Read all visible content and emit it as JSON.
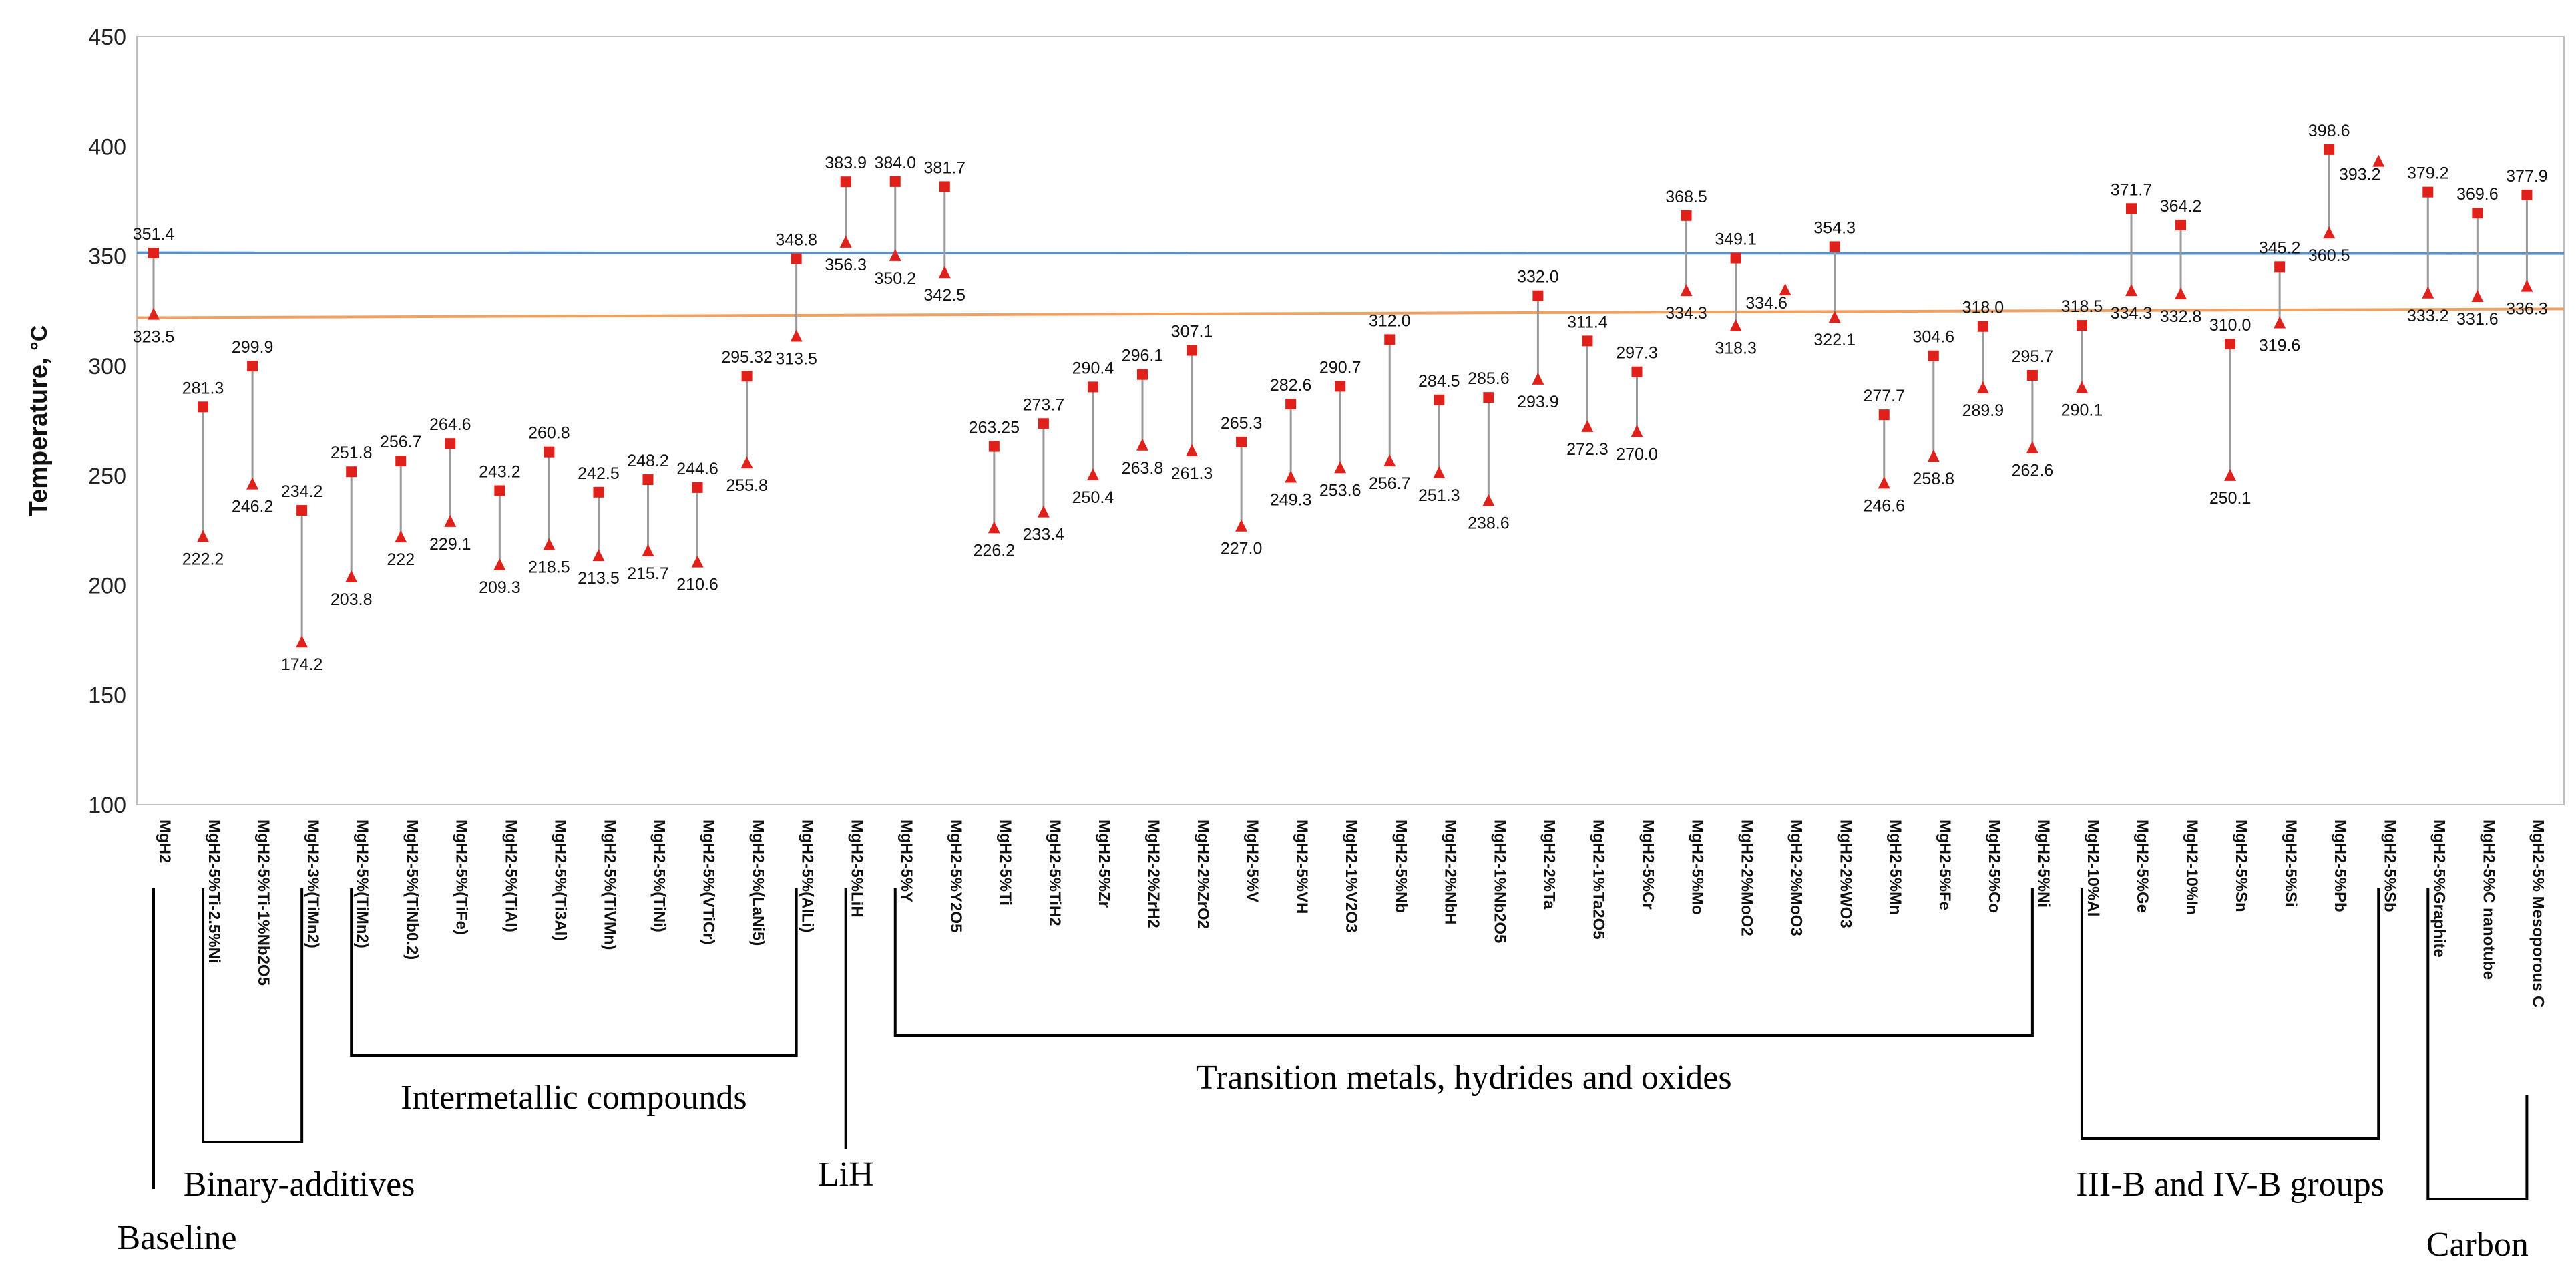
{
  "chart_data": {
    "type": "scatter",
    "ylabel": "Temperature, ",
    "yunit": "°C",
    "ylim": [
      100,
      450
    ],
    "yticks": [
      100,
      150,
      200,
      250,
      300,
      350,
      400,
      450
    ],
    "grid": false,
    "reference_lines": [
      {
        "name": "blue",
        "color": "#5b8fc7",
        "from": 351.5,
        "to": 351.2
      },
      {
        "name": "orange",
        "color": "#f0a060",
        "from": 322,
        "to": 326
      }
    ],
    "marker_color": "#e0201a",
    "stem_color": "#9a9a9a",
    "points": [
      {
        "label": "MgH2",
        "square": "351.4",
        "triangle": "323.5"
      },
      {
        "label": "MgH2-5%Ti-2.5%Ni",
        "square": "281.3",
        "triangle": "222.2"
      },
      {
        "label": "MgH2-5%Ti-1%Nb2O5",
        "square": "299.9",
        "triangle": "246.2"
      },
      {
        "label": "MgH2-3%(TiMn2)",
        "square": "234.2",
        "triangle": "174.2"
      },
      {
        "label": "MgH2-5%(TiMn2)",
        "square": "251.8",
        "triangle": "203.8"
      },
      {
        "label": "MgH2-5%(TiNb0.2)",
        "square": "256.7",
        "triangle": "222"
      },
      {
        "label": "MgH2-5%(TiFe)",
        "square": "264.6",
        "triangle": "229.1"
      },
      {
        "label": "MgH2-5%(TiAl)",
        "square": "243.2",
        "triangle": "209.3"
      },
      {
        "label": "MgH2-5%(Ti3Al)",
        "square": "260.8",
        "triangle": "218.5"
      },
      {
        "label": "MgH2-5%(TiVMn)",
        "square": "242.5",
        "triangle": "213.5"
      },
      {
        "label": "MgH2-5%(TiNi)",
        "square": "248.2",
        "triangle": "215.7"
      },
      {
        "label": "MgH2-5%(VTiCr)",
        "square": "244.6",
        "triangle": "210.6"
      },
      {
        "label": "MgH2-5%(LaNi5)",
        "square": "295.32",
        "triangle": "255.8"
      },
      {
        "label": "MgH2-5%(AlLi)",
        "square": "348.8",
        "triangle": "313.5"
      },
      {
        "label": "MgH2-5%LiH",
        "square": "383.9",
        "triangle": "356.3"
      },
      {
        "label": "MgH2-5%Y",
        "square": "384.0",
        "triangle": "350.2"
      },
      {
        "label": "MgH2-5%Y2O5",
        "square": "381.7",
        "triangle": "342.5"
      },
      {
        "label": "MgH2-5%Ti",
        "square": "263.25",
        "triangle": "226.2"
      },
      {
        "label": "MgH2-5%TiH2",
        "square": "273.7",
        "triangle": "233.4"
      },
      {
        "label": "MgH2-5%Zr",
        "square": "290.4",
        "triangle": "250.4"
      },
      {
        "label": "MgH2-2%ZrH2",
        "square": "296.1",
        "triangle": "263.8"
      },
      {
        "label": "MgH2-2%ZrO2",
        "square": "307.1",
        "triangle": "261.3"
      },
      {
        "label": "MgH2-5%V",
        "square": "265.3",
        "triangle": "227.0"
      },
      {
        "label": "MgH2-5%VH",
        "square": "282.6",
        "triangle": "249.3"
      },
      {
        "label": "MgH2-1%V2O3",
        "square": "290.7",
        "triangle": "253.6"
      },
      {
        "label": "MgH2-5%Nb",
        "square": "312.0",
        "triangle": "256.7"
      },
      {
        "label": "MgH2-2%NbH",
        "square": "284.5",
        "triangle": "251.3"
      },
      {
        "label": "MgH2-1%Nb2O5",
        "square": "285.6",
        "triangle": "238.6"
      },
      {
        "label": "MgH2-2%Ta",
        "square": "332.0",
        "triangle": "293.9"
      },
      {
        "label": "MgH2-1%Ta2O5",
        "square": "311.4",
        "triangle": "272.3"
      },
      {
        "label": "MgH2-5%Cr",
        "square": "297.3",
        "triangle": "270.0"
      },
      {
        "label": "MgH2-5%Mo",
        "square": "368.5",
        "triangle": "334.3"
      },
      {
        "label": "MgH2-2%MoO2",
        "square": "349.1",
        "triangle": "318.3"
      },
      {
        "label": "MgH2-2%MoO3",
        "square": null,
        "triangle": "334.6"
      },
      {
        "label": "MgH2-2%WO3",
        "square": "354.3",
        "triangle": "322.1"
      },
      {
        "label": "MgH2-5%Mn",
        "square": "277.7",
        "triangle": "246.6"
      },
      {
        "label": "MgH2-5%Fe",
        "square": "304.6",
        "triangle": "258.8"
      },
      {
        "label": "MgH2-5%Co",
        "square": "318.0",
        "triangle": "289.9"
      },
      {
        "label": "MgH2-5%Ni",
        "square": "295.7",
        "triangle": "262.6"
      },
      {
        "label": "MgH2-10%Al",
        "square": "318.5",
        "triangle": "290.1"
      },
      {
        "label": "MgH2-5%Ge",
        "square": "371.7",
        "triangle": "334.3"
      },
      {
        "label": "MgH2-10%In",
        "square": "364.2",
        "triangle": "332.8"
      },
      {
        "label": "MgH2-5%Sn",
        "square": "310.0",
        "triangle": "250.1"
      },
      {
        "label": "MgH2-5%Si",
        "square": "345.2",
        "triangle": "319.6"
      },
      {
        "label": "MgH2-5%Pb",
        "square": "398.6",
        "triangle": "360.5"
      },
      {
        "label": "MgH2-5%Sb",
        "square": null,
        "triangle": "393.2"
      },
      {
        "label": "MgH2-5%Graphite",
        "square": "379.2",
        "triangle": "333.2"
      },
      {
        "label": "MgH2-5%C nanotube",
        "square": "369.6",
        "triangle": "331.6"
      },
      {
        "label": "MgH2-5% Mesoporous C",
        "square": "377.9",
        "triangle": "336.3"
      }
    ],
    "groups": [
      {
        "name": "Baseline",
        "type": "single",
        "members": [
          0
        ]
      },
      {
        "name": "Binary-additives",
        "type": "bracket",
        "members": [
          1,
          3
        ]
      },
      {
        "name": "Intermetallic compounds",
        "type": "bracket-up",
        "members": [
          4,
          13
        ]
      },
      {
        "name": "LiH",
        "type": "single",
        "members": [
          14
        ]
      },
      {
        "name": "Transition metals, hydrides and oxides",
        "type": "bracket-up",
        "members": [
          15,
          38
        ]
      },
      {
        "name": "III-B and IV-B groups",
        "type": "bracket",
        "members": [
          39,
          45
        ]
      },
      {
        "name": "Carbon",
        "type": "bracket",
        "members": [
          46,
          48
        ]
      }
    ]
  }
}
